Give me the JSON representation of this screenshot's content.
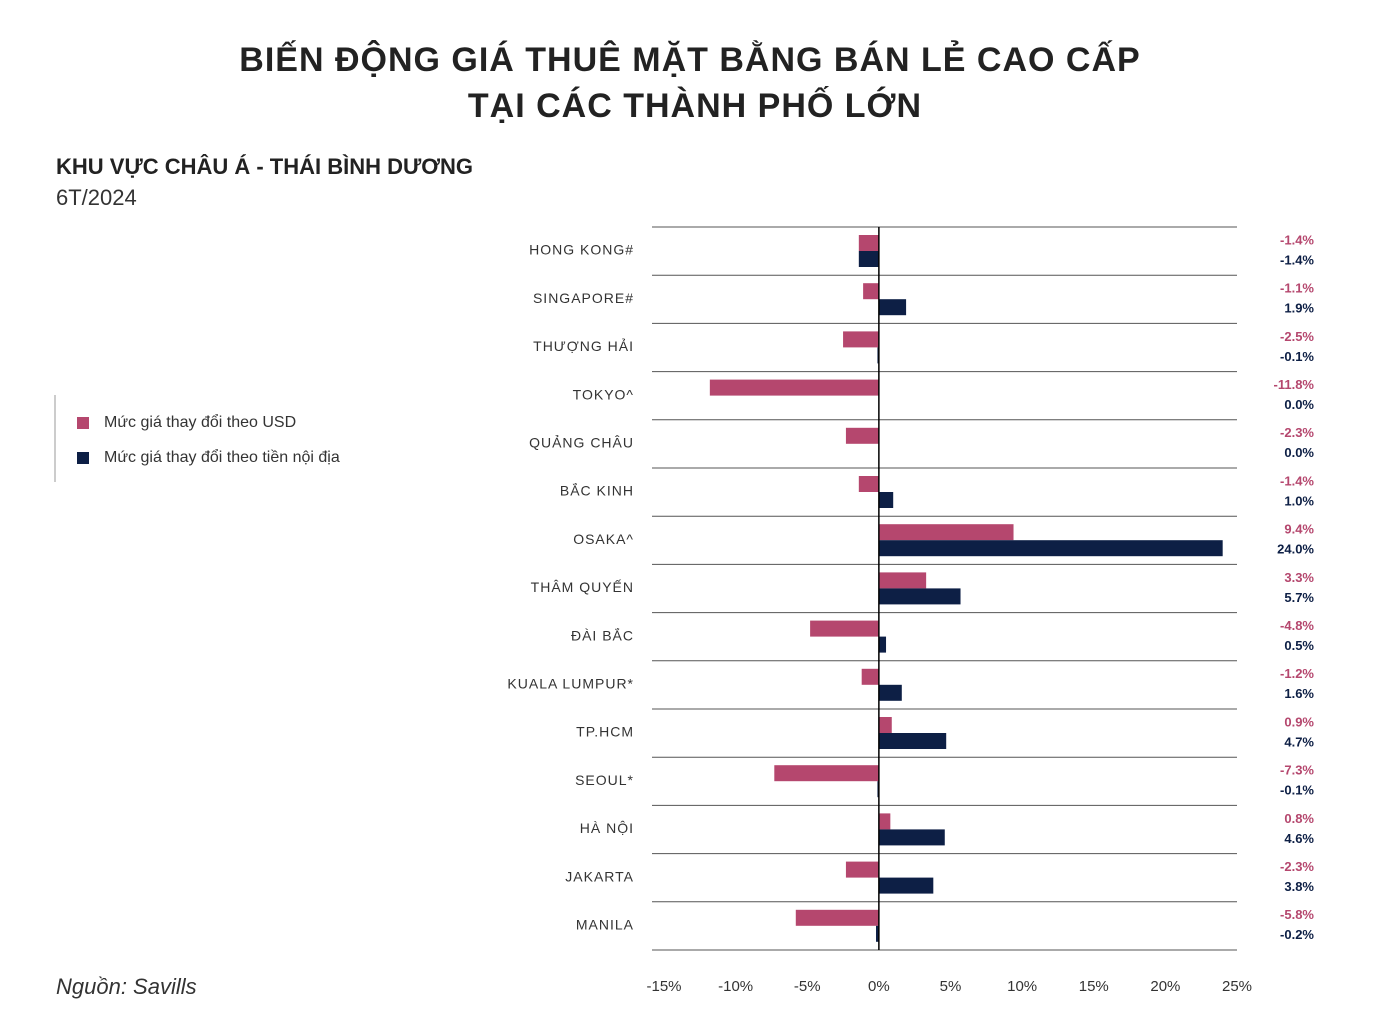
{
  "chart_data": {
    "type": "bar",
    "title": [
      "BIẾN ĐỘNG GIÁ THUÊ MẶT BẰNG BÁN LẺ CAO CẤP",
      "TẠI CÁC THÀNH PHỐ LỚN"
    ],
    "subtitle": "KHU VỰC CHÂU Á - THÁI BÌNH DƯƠNG",
    "period": "6T/2024",
    "source": "Nguồn: Savills",
    "orientation": "horizontal",
    "categories": [
      "HONG KONG#",
      "SINGAPORE#",
      "THƯỢNG HẢI",
      "TOKYO^",
      "QUẢNG CHÂU",
      "BẮC KINH",
      "OSAKA^",
      "THÂM QUYẾN",
      "ĐÀI BẮC",
      "KUALA LUMPUR*",
      "TP.HCM",
      "SEOUL*",
      "HÀ NỘI",
      "JAKARTA",
      "MANILA"
    ],
    "series": [
      {
        "name": "Mức giá thay đổi theo USD",
        "color": "#b5476e",
        "values": [
          -1.4,
          -1.1,
          -2.5,
          -11.8,
          -2.3,
          -1.4,
          9.4,
          3.3,
          -4.8,
          -1.2,
          0.9,
          -7.3,
          0.8,
          -2.3,
          -5.8
        ],
        "value_labels": [
          "-1.4%",
          "-1.1%",
          "-2.5%",
          "-11.8%",
          "-2.3%",
          "-1.4%",
          "9.4%",
          "3.3%",
          "-4.8%",
          "-1.2%",
          "0.9%",
          "-7.3%",
          "0.8%",
          "-2.3%",
          "-5.8%"
        ]
      },
      {
        "name": "Mức giá thay đổi theo tiền nội địa",
        "color": "#0d1f45",
        "values": [
          -1.4,
          1.9,
          -0.1,
          0.0,
          0.0,
          1.0,
          24.0,
          5.7,
          0.5,
          1.6,
          4.7,
          -0.1,
          4.6,
          3.8,
          -0.2
        ],
        "value_labels": [
          "-1.4%",
          "1.9%",
          "-0.1%",
          "0.0%",
          "0.0%",
          "1.0%",
          "24.0%",
          "5.7%",
          "0.5%",
          "1.6%",
          "4.7%",
          "-0.1%",
          "4.6%",
          "3.8%",
          "-0.2%"
        ]
      }
    ],
    "xlim": [
      -15,
      25
    ],
    "xticks": [
      {
        "value": -15,
        "label": "-15%"
      },
      {
        "value": -10,
        "label": "-10%"
      },
      {
        "value": -5,
        "label": "-5%"
      },
      {
        "value": 0,
        "label": "0%"
      },
      {
        "value": 5,
        "label": "5%"
      },
      {
        "value": 10,
        "label": "10%"
      },
      {
        "value": 15,
        "label": "15%"
      },
      {
        "value": 20,
        "label": "20%"
      },
      {
        "value": 25,
        "label": "25%"
      }
    ]
  }
}
